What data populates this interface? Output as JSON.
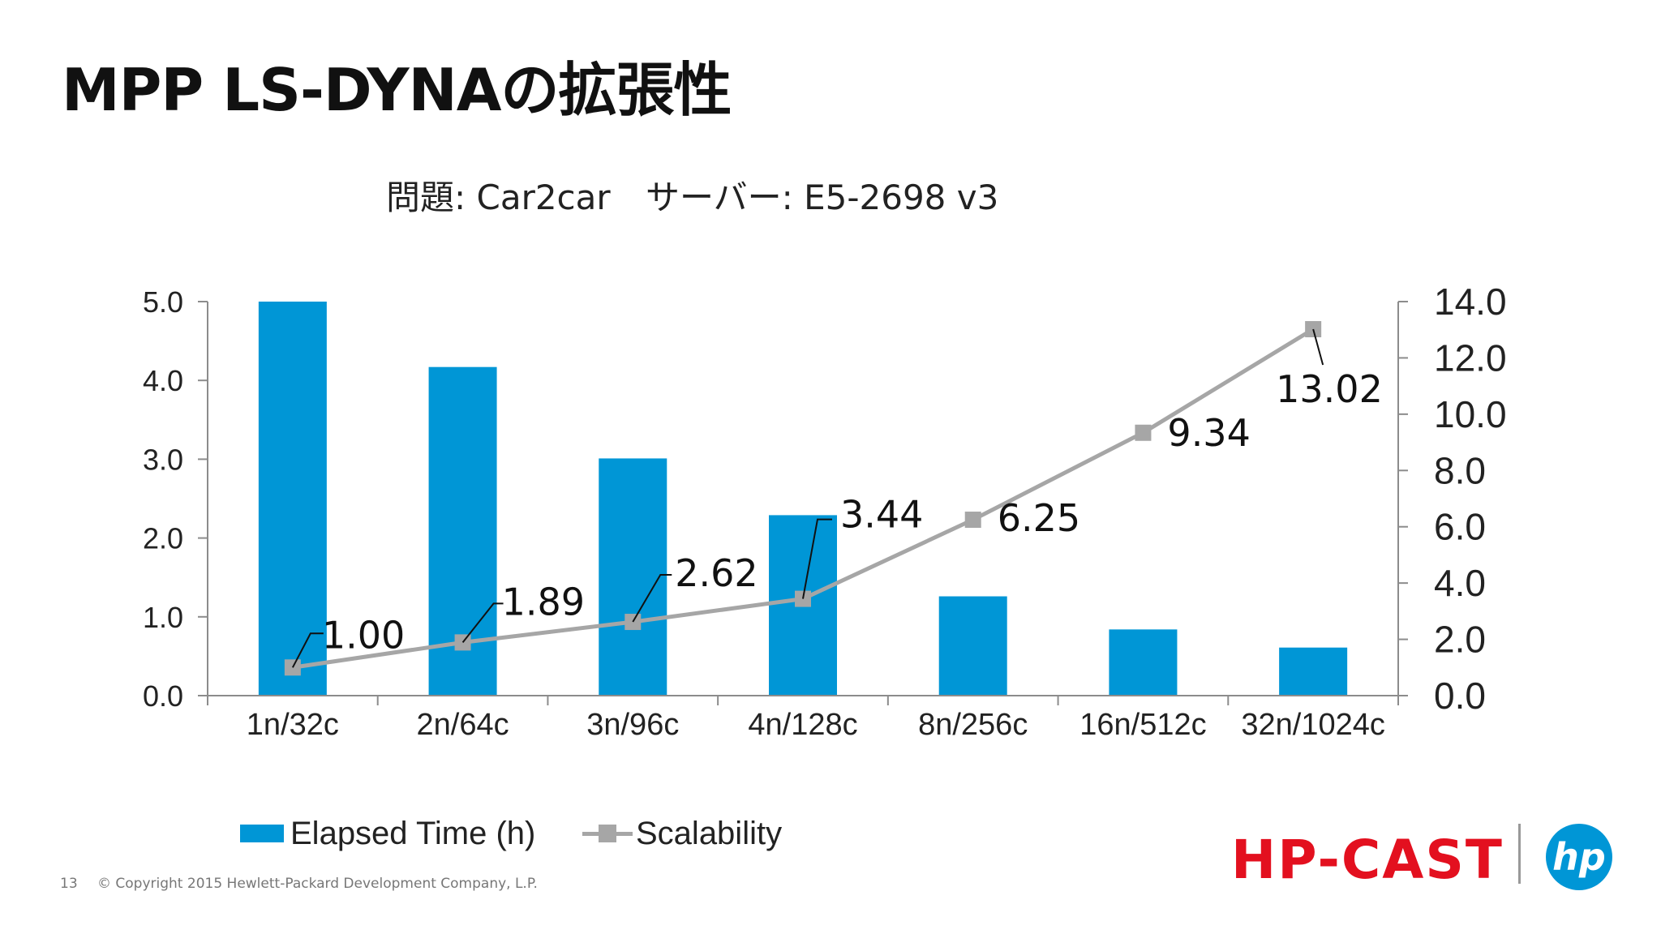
{
  "slide": {
    "title": "MPP LS-DYNAの拡張性",
    "problem": "問題: Car2car",
    "server": "サーバー: E5-2698 v3",
    "page_number": "13",
    "copyright": "© Copyright 2015 Hewlett-Packard Development Company, L.P.",
    "brand": "HP-CAST",
    "logo": "hp"
  },
  "colors": {
    "bar": "#0096d6",
    "line": "#a6a6a6",
    "brand": "#e3101f"
  },
  "chart_data": {
    "type": "bar",
    "categories": [
      "1n/32c",
      "2n/64c",
      "3n/96c",
      "4n/128c",
      "8n/256c",
      "16n/512c",
      "32n/1024c"
    ],
    "series": [
      {
        "name": "Elapsed Time (h)",
        "type": "bar",
        "axis": "left",
        "values": [
          5.0,
          4.17,
          3.01,
          2.29,
          1.26,
          0.84,
          0.61
        ]
      },
      {
        "name": "Scalability",
        "type": "line",
        "axis": "right",
        "values": [
          1.0,
          1.89,
          2.62,
          3.44,
          6.25,
          9.34,
          13.02
        ],
        "labels": [
          "1.00",
          "1.89",
          "2.62",
          "3.44",
          "6.25",
          "9.34",
          "13.02"
        ]
      }
    ],
    "y_left": {
      "lim": [
        0,
        5
      ],
      "ticks": [
        "0.0",
        "1.0",
        "2.0",
        "3.0",
        "4.0",
        "5.0"
      ]
    },
    "y_right": {
      "lim": [
        0,
        14
      ],
      "ticks": [
        "0.0",
        "2.0",
        "4.0",
        "6.0",
        "8.0",
        "10.0",
        "12.0",
        "14.0"
      ]
    },
    "legend": "bottom-left",
    "grid": false
  }
}
